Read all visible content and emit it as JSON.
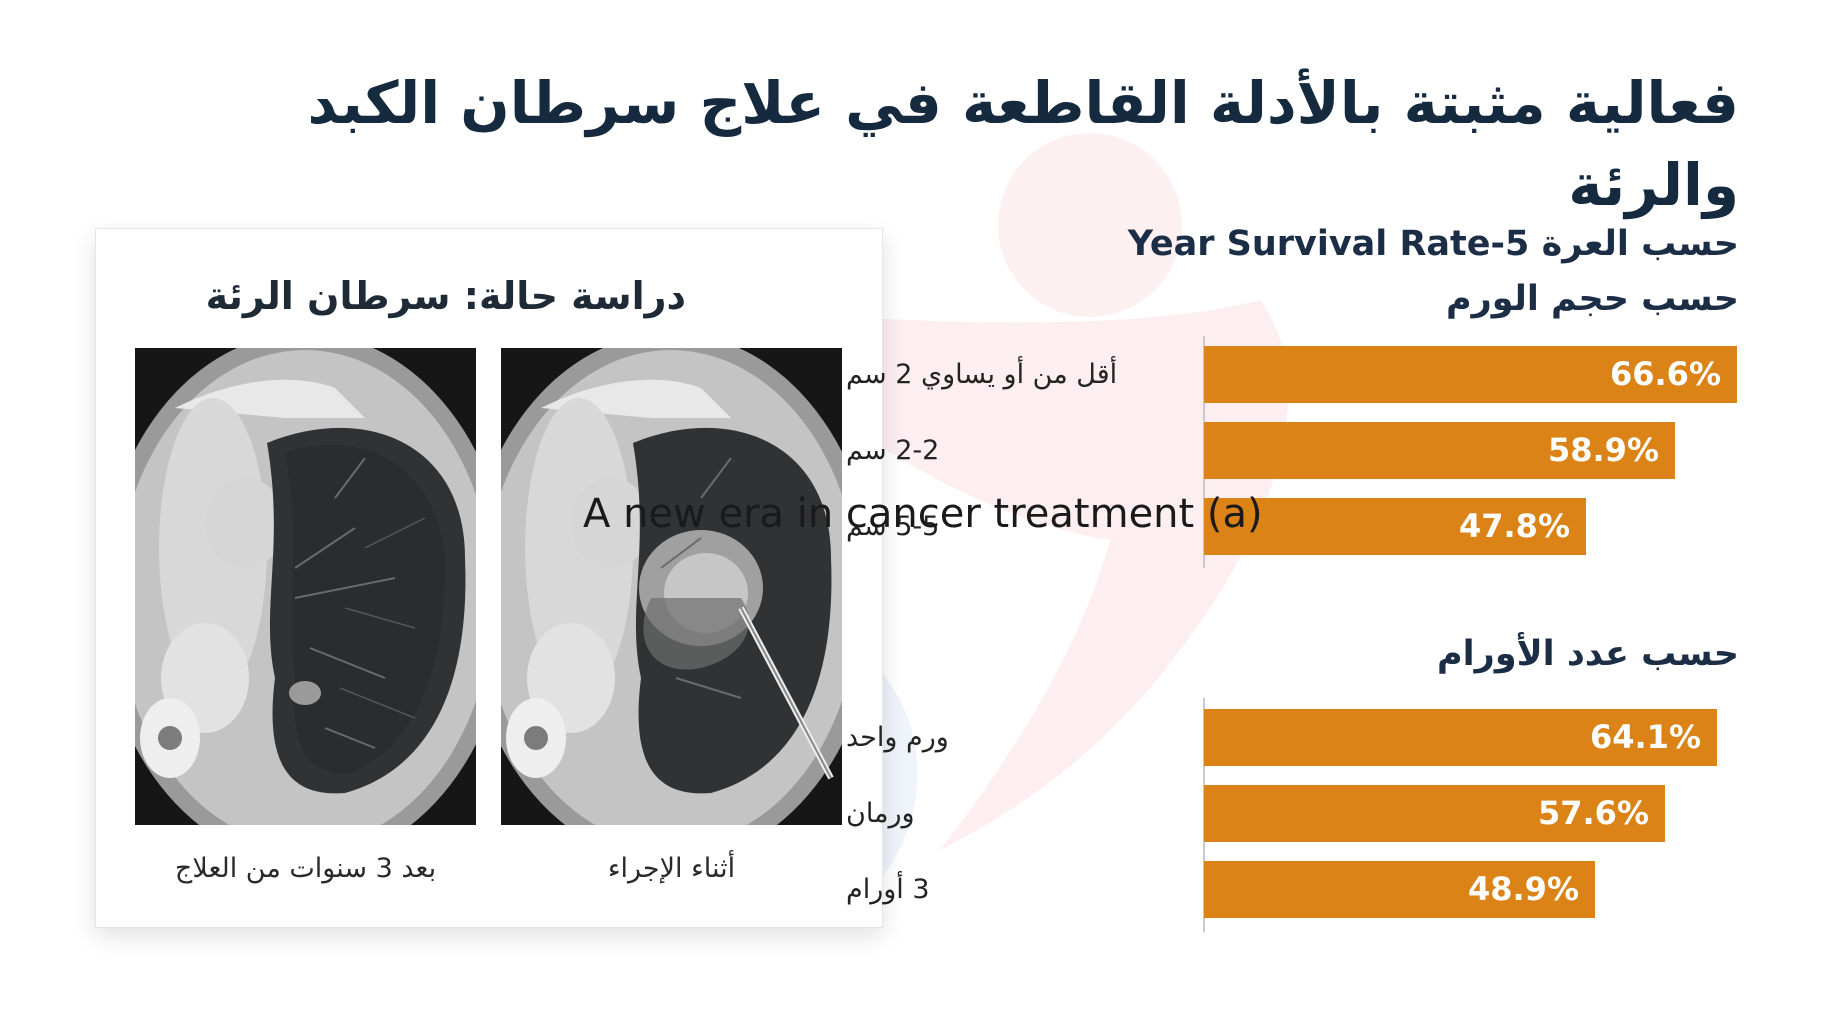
{
  "title": "فعالية مثبتة بالأدلة القاطعة في علاج سرطان الكبد والرئة",
  "overlay_caption": "A new era in cancer treatment (a)",
  "case_study": {
    "title": "دراسة حالة: سرطان الرئة",
    "images": [
      {
        "caption": "بعد 3 سنوات من العلاج"
      },
      {
        "caption": "أثناء الإجراء"
      }
    ]
  },
  "chart_title": "حسب العرة 5-Year Survival Rate",
  "colors": {
    "bar": "#db8316",
    "title": "#15293f"
  },
  "chart_data": [
    {
      "type": "bar",
      "orientation": "horizontal",
      "title": "حسب حجم الورم",
      "categories": [
        "أقل من أو يساوي 2 سم",
        "2-2 سم",
        "5-5 سم"
      ],
      "values": [
        66.6,
        58.9,
        47.8
      ],
      "value_labels": [
        "66.6%",
        "58.9%",
        "47.8%"
      ],
      "xlim": [
        0,
        100
      ],
      "grid": false
    },
    {
      "type": "bar",
      "orientation": "horizontal",
      "title": "حسب عدد الأورام",
      "categories": [
        "ورم واحد",
        "ورمان",
        "3 أورام"
      ],
      "values": [
        64.1,
        57.6,
        48.9
      ],
      "value_labels": [
        "64.1%",
        "57.6%",
        "48.9%"
      ],
      "xlim": [
        0,
        100
      ],
      "grid": false
    }
  ]
}
